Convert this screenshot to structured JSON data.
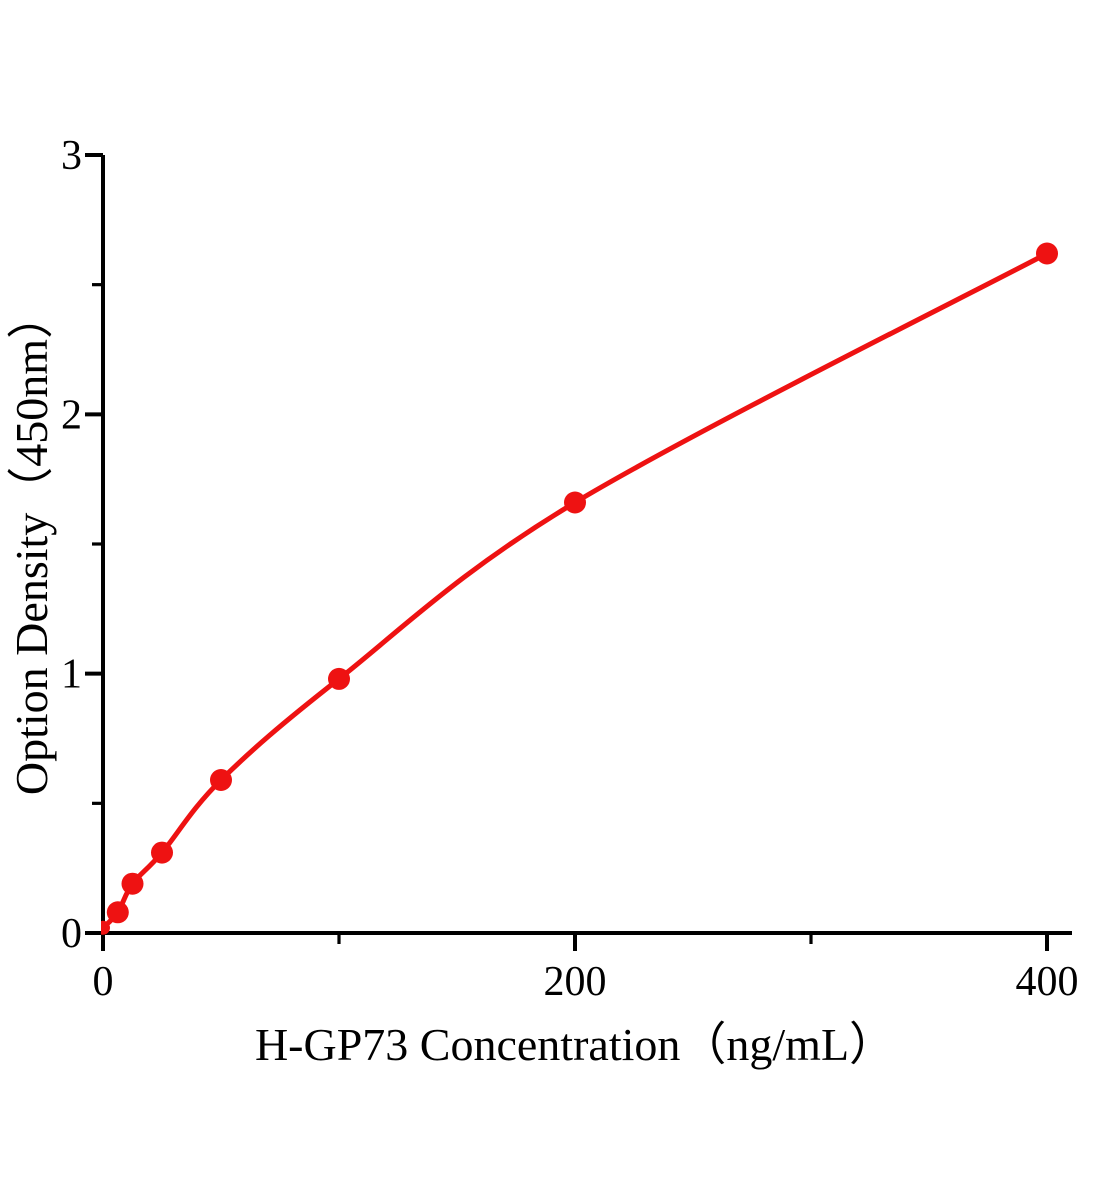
{
  "figure": {
    "background_color": "#ffffff",
    "text_color": "#000000"
  },
  "chart_data": {
    "type": "scatter",
    "title": "",
    "xlabel": "H-GP73 Concentration（ng/mL）",
    "ylabel": "Option Density（450nm）",
    "x": [
      0,
      6.25,
      12.5,
      25,
      50,
      100,
      200,
      400
    ],
    "y": [
      0.02,
      0.08,
      0.19,
      0.31,
      0.59,
      0.98,
      1.66,
      2.62
    ],
    "xlim": [
      0,
      400
    ],
    "ylim": [
      0,
      3
    ],
    "x_major_ticks": [
      0,
      200,
      400
    ],
    "x_minor_ticks": [
      100,
      300
    ],
    "y_major_ticks": [
      0,
      1,
      2,
      3
    ],
    "y_minor_ticks": [
      0.5,
      1.5,
      2.5
    ],
    "grid": false,
    "legend": null,
    "line_style": "smooth",
    "marker": "circle",
    "colors": {
      "curve": "#ee1212",
      "marker": "#ee1212",
      "axis": "#000000",
      "tick_text": "#000000"
    }
  }
}
